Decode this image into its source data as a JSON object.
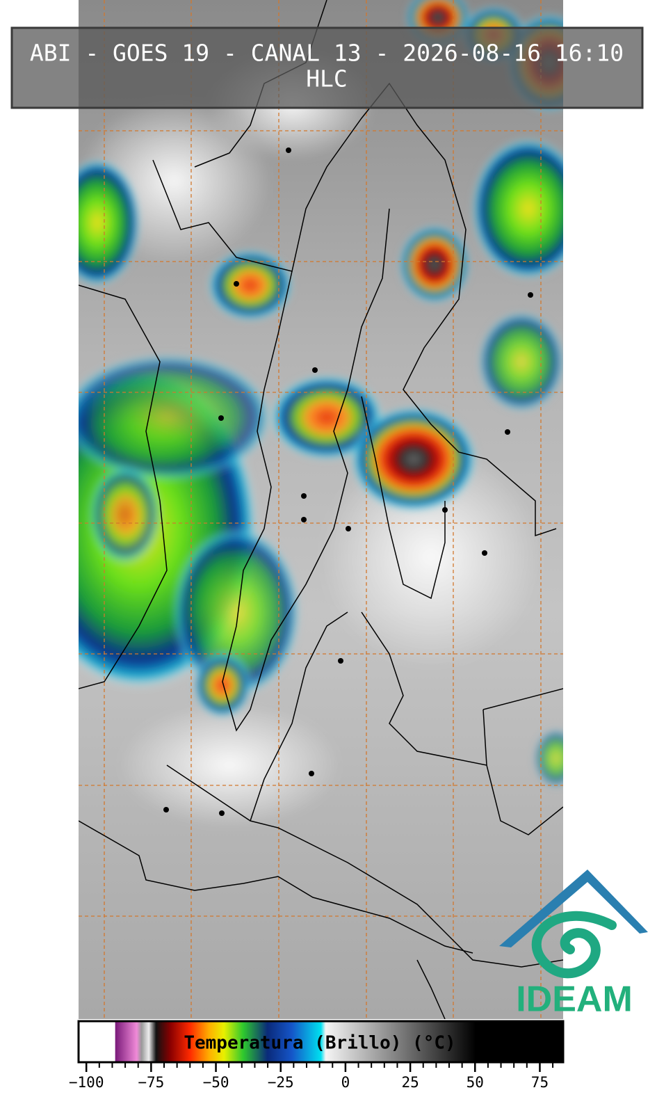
{
  "header": {
    "title": "ABI - GOES 19 - CANAL 13 - 2026-08-16 16:10",
    "subtitle": "HLC"
  },
  "colorbar": {
    "label": "Temperatura (Brillo) (°C)",
    "range": [
      -103,
      84
    ],
    "ticks": [
      {
        "value": -100,
        "label": "−100"
      },
      {
        "value": -75,
        "label": "−75"
      },
      {
        "value": -50,
        "label": "−50"
      },
      {
        "value": -25,
        "label": "−25"
      },
      0,
      25,
      50,
      75
    ]
  },
  "logo": {
    "text": "IDEAM"
  }
}
